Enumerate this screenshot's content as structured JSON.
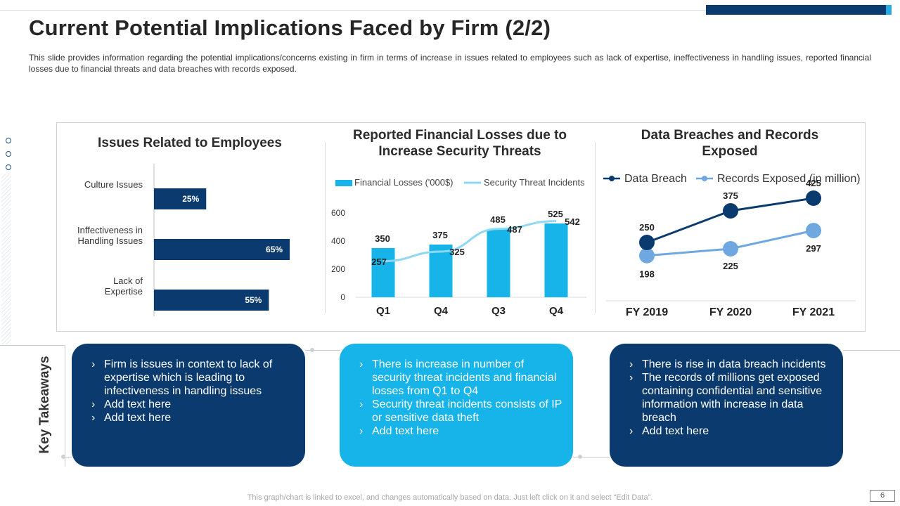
{
  "slide": {
    "title": "Current Potential Implications Faced by Firm (2/2)",
    "description": "This slide provides information regarding the potential implications/concerns existing in firm in terms of increase in  issues related to employees such as lack of expertise, ineffectiveness  in handling issues, reported financial losses due to financial threats and data breaches with records exposed.",
    "footer_note": "This graph/chart is linked to excel, and changes automatically based on data. Just left click on it and select “Edit Data”.",
    "page_number": "6"
  },
  "colors": {
    "navy": "#0b3a6e",
    "cyan": "#17b4ea",
    "line_cyan": "#8fd8f3",
    "records_blue": "#6fa8e0"
  },
  "chart_data": [
    {
      "type": "bar",
      "orientation": "horizontal",
      "title": "Issues Related to Employees",
      "categories": [
        "Culture Issues",
        "Inffectiveness in Handling Issues",
        "Lack of Expertise"
      ],
      "values": [
        25,
        65,
        55
      ],
      "value_labels": [
        "25%",
        "65%",
        "55%"
      ],
      "xlim": [
        0,
        100
      ]
    },
    {
      "type": "bar",
      "title": "Reported Financial Losses due to Increase Security Threats",
      "categories": [
        "Q1",
        "Q4",
        "Q3",
        "Q4"
      ],
      "series": [
        {
          "name": "Financial Losses  ('000$)",
          "kind": "bar",
          "values": [
            350,
            375,
            485,
            525
          ]
        },
        {
          "name": "Security Threat Incidents",
          "kind": "line",
          "values": [
            257,
            325,
            487,
            542
          ]
        }
      ],
      "yticks": [
        "600",
        "400",
        "200",
        "0"
      ],
      "ylim": [
        0,
        600
      ],
      "legend": "top"
    },
    {
      "type": "line",
      "title": "Data Breaches and Records Exposed",
      "categories": [
        "FY 2019",
        "FY 2020",
        "FY 2021"
      ],
      "series": [
        {
          "name": "Data Breach",
          "values": [
            250,
            375,
            425
          ]
        },
        {
          "name": "Records Exposed (in million)",
          "values": [
            198,
            225,
            297
          ]
        }
      ],
      "legend": "top"
    }
  ],
  "key_takeaways": {
    "label": "Key Takeaways",
    "cards": [
      {
        "items": [
          "Firm is issues in context to lack of expertise which is leading to infectiveness in handling issues",
          "Add text here",
          "Add text here"
        ]
      },
      {
        "items": [
          "There is increase in number of security threat incidents and financial losses from Q1 to Q4",
          "Security threat incidents consists of IP or sensitive data theft",
          "Add text here"
        ]
      },
      {
        "items": [
          "There is rise in data breach incidents",
          "The records of millions get exposed containing confidential and sensitive information with increase in data breach",
          "Add text here"
        ]
      }
    ]
  }
}
